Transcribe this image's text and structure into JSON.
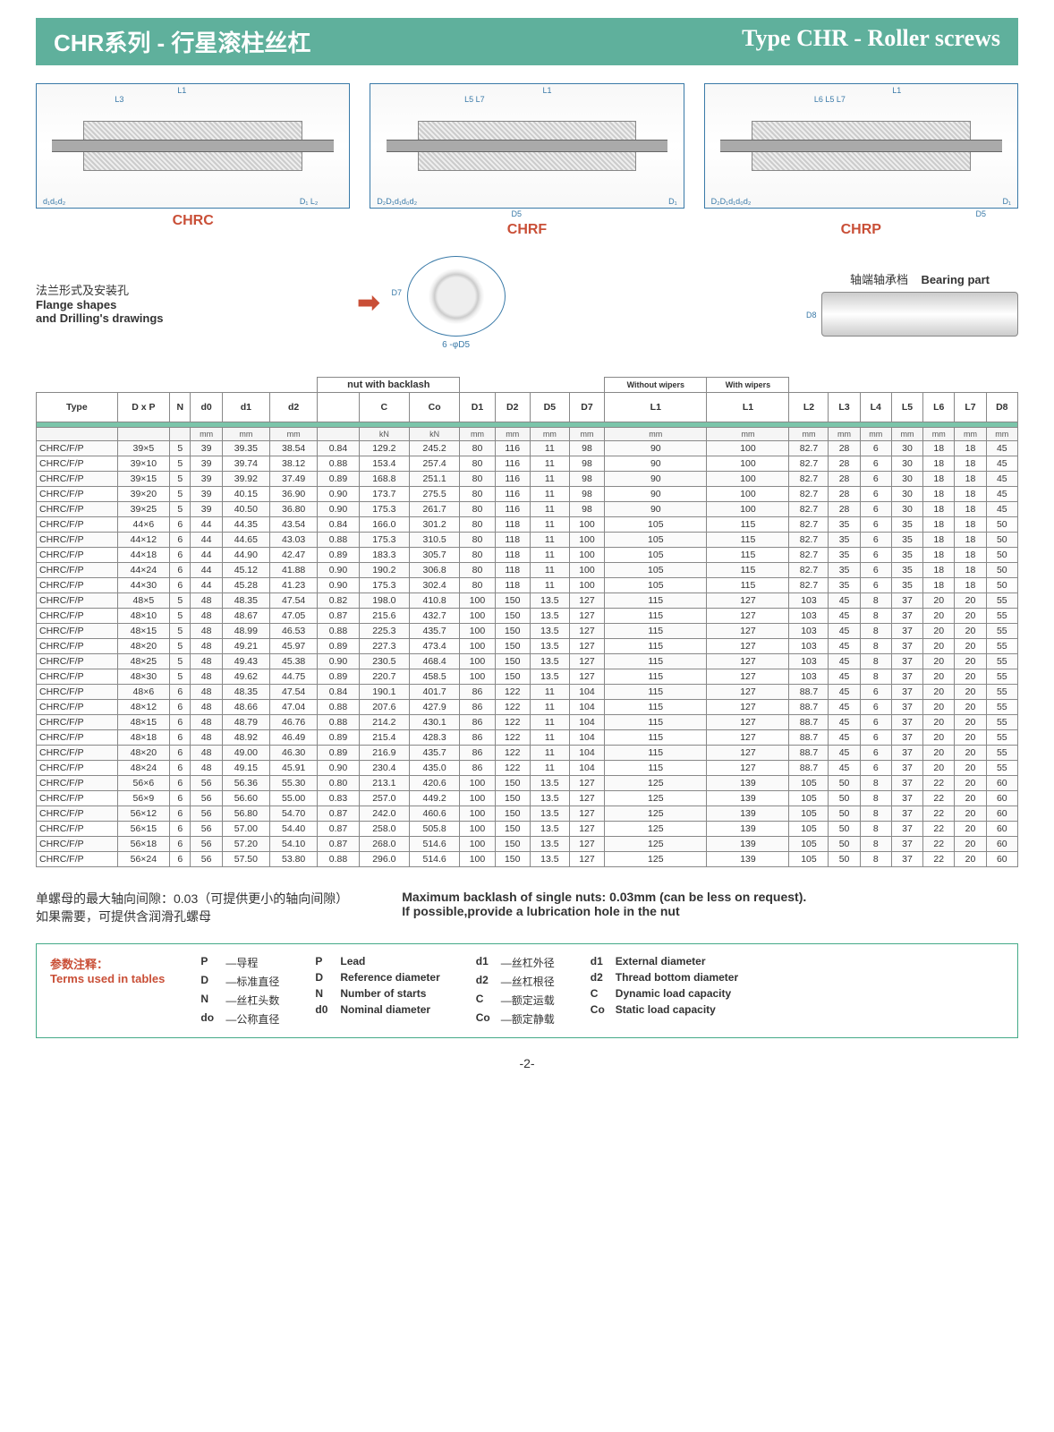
{
  "banner": {
    "cn": "CHR系列 - 行星滚柱丝杠",
    "en": "Type CHR - Roller screws"
  },
  "diagram_labels": [
    "CHRC",
    "CHRF",
    "CHRP"
  ],
  "flange": {
    "cn": "法兰形式及安装孔",
    "en1": "Flange shapes",
    "en2": "and Drilling's drawings",
    "d7": "D7",
    "caption": "6 -φD5"
  },
  "bearing": {
    "cn": "轴端轴承档",
    "en": "Bearing part",
    "d8": "D8"
  },
  "table": {
    "group_headers": {
      "backlash": "nut with backlash",
      "nowipers": "Without wipers",
      "wipers": "With wipers"
    },
    "columns": [
      "Type",
      "D x P",
      "N",
      "d0",
      "d1",
      "d2",
      "",
      "C",
      "Co",
      "D1",
      "D2",
      "D5",
      "D7",
      "L1",
      "L1",
      "L2",
      "L3",
      "L4",
      "L5",
      "L6",
      "L7",
      "D8"
    ],
    "units": [
      "",
      "",
      "",
      "mm",
      "mm",
      "mm",
      "",
      "kN",
      "kN",
      "mm",
      "mm",
      "mm",
      "mm",
      "mm",
      "mm",
      "mm",
      "mm",
      "mm",
      "mm",
      "mm",
      "mm",
      "mm"
    ],
    "rows": [
      [
        "CHRC/F/P",
        "39×5",
        "5",
        "39",
        "39.35",
        "38.54",
        "0.84",
        "129.2",
        "245.2",
        "80",
        "116",
        "11",
        "98",
        "90",
        "100",
        "82.7",
        "28",
        "6",
        "30",
        "18",
        "18",
        "45"
      ],
      [
        "CHRC/F/P",
        "39×10",
        "5",
        "39",
        "39.74",
        "38.12",
        "0.88",
        "153.4",
        "257.4",
        "80",
        "116",
        "11",
        "98",
        "90",
        "100",
        "82.7",
        "28",
        "6",
        "30",
        "18",
        "18",
        "45"
      ],
      [
        "CHRC/F/P",
        "39×15",
        "5",
        "39",
        "39.92",
        "37.49",
        "0.89",
        "168.8",
        "251.1",
        "80",
        "116",
        "11",
        "98",
        "90",
        "100",
        "82.7",
        "28",
        "6",
        "30",
        "18",
        "18",
        "45"
      ],
      [
        "CHRC/F/P",
        "39×20",
        "5",
        "39",
        "40.15",
        "36.90",
        "0.90",
        "173.7",
        "275.5",
        "80",
        "116",
        "11",
        "98",
        "90",
        "100",
        "82.7",
        "28",
        "6",
        "30",
        "18",
        "18",
        "45"
      ],
      [
        "CHRC/F/P",
        "39×25",
        "5",
        "39",
        "40.50",
        "36.80",
        "0.90",
        "175.3",
        "261.7",
        "80",
        "116",
        "11",
        "98",
        "90",
        "100",
        "82.7",
        "28",
        "6",
        "30",
        "18",
        "18",
        "45"
      ],
      [
        "CHRC/F/P",
        "44×6",
        "6",
        "44",
        "44.35",
        "43.54",
        "0.84",
        "166.0",
        "301.2",
        "80",
        "118",
        "11",
        "100",
        "105",
        "115",
        "82.7",
        "35",
        "6",
        "35",
        "18",
        "18",
        "50"
      ],
      [
        "CHRC/F/P",
        "44×12",
        "6",
        "44",
        "44.65",
        "43.03",
        "0.88",
        "175.3",
        "310.5",
        "80",
        "118",
        "11",
        "100",
        "105",
        "115",
        "82.7",
        "35",
        "6",
        "35",
        "18",
        "18",
        "50"
      ],
      [
        "CHRC/F/P",
        "44×18",
        "6",
        "44",
        "44.90",
        "42.47",
        "0.89",
        "183.3",
        "305.7",
        "80",
        "118",
        "11",
        "100",
        "105",
        "115",
        "82.7",
        "35",
        "6",
        "35",
        "18",
        "18",
        "50"
      ],
      [
        "CHRC/F/P",
        "44×24",
        "6",
        "44",
        "45.12",
        "41.88",
        "0.90",
        "190.2",
        "306.8",
        "80",
        "118",
        "11",
        "100",
        "105",
        "115",
        "82.7",
        "35",
        "6",
        "35",
        "18",
        "18",
        "50"
      ],
      [
        "CHRC/F/P",
        "44×30",
        "6",
        "44",
        "45.28",
        "41.23",
        "0.90",
        "175.3",
        "302.4",
        "80",
        "118",
        "11",
        "100",
        "105",
        "115",
        "82.7",
        "35",
        "6",
        "35",
        "18",
        "18",
        "50"
      ],
      [
        "CHRC/F/P",
        "48×5",
        "5",
        "48",
        "48.35",
        "47.54",
        "0.82",
        "198.0",
        "410.8",
        "100",
        "150",
        "13.5",
        "127",
        "115",
        "127",
        "103",
        "45",
        "8",
        "37",
        "20",
        "20",
        "55"
      ],
      [
        "CHRC/F/P",
        "48×10",
        "5",
        "48",
        "48.67",
        "47.05",
        "0.87",
        "215.6",
        "432.7",
        "100",
        "150",
        "13.5",
        "127",
        "115",
        "127",
        "103",
        "45",
        "8",
        "37",
        "20",
        "20",
        "55"
      ],
      [
        "CHRC/F/P",
        "48×15",
        "5",
        "48",
        "48.99",
        "46.53",
        "0.88",
        "225.3",
        "435.7",
        "100",
        "150",
        "13.5",
        "127",
        "115",
        "127",
        "103",
        "45",
        "8",
        "37",
        "20",
        "20",
        "55"
      ],
      [
        "CHRC/F/P",
        "48×20",
        "5",
        "48",
        "49.21",
        "45.97",
        "0.89",
        "227.3",
        "473.4",
        "100",
        "150",
        "13.5",
        "127",
        "115",
        "127",
        "103",
        "45",
        "8",
        "37",
        "20",
        "20",
        "55"
      ],
      [
        "CHRC/F/P",
        "48×25",
        "5",
        "48",
        "49.43",
        "45.38",
        "0.90",
        "230.5",
        "468.4",
        "100",
        "150",
        "13.5",
        "127",
        "115",
        "127",
        "103",
        "45",
        "8",
        "37",
        "20",
        "20",
        "55"
      ],
      [
        "CHRC/F/P",
        "48×30",
        "5",
        "48",
        "49.62",
        "44.75",
        "0.89",
        "220.7",
        "458.5",
        "100",
        "150",
        "13.5",
        "127",
        "115",
        "127",
        "103",
        "45",
        "8",
        "37",
        "20",
        "20",
        "55"
      ],
      [
        "CHRC/F/P",
        "48×6",
        "6",
        "48",
        "48.35",
        "47.54",
        "0.84",
        "190.1",
        "401.7",
        "86",
        "122",
        "11",
        "104",
        "115",
        "127",
        "88.7",
        "45",
        "6",
        "37",
        "20",
        "20",
        "55"
      ],
      [
        "CHRC/F/P",
        "48×12",
        "6",
        "48",
        "48.66",
        "47.04",
        "0.88",
        "207.6",
        "427.9",
        "86",
        "122",
        "11",
        "104",
        "115",
        "127",
        "88.7",
        "45",
        "6",
        "37",
        "20",
        "20",
        "55"
      ],
      [
        "CHRC/F/P",
        "48×15",
        "6",
        "48",
        "48.79",
        "46.76",
        "0.88",
        "214.2",
        "430.1",
        "86",
        "122",
        "11",
        "104",
        "115",
        "127",
        "88.7",
        "45",
        "6",
        "37",
        "20",
        "20",
        "55"
      ],
      [
        "CHRC/F/P",
        "48×18",
        "6",
        "48",
        "48.92",
        "46.49",
        "0.89",
        "215.4",
        "428.3",
        "86",
        "122",
        "11",
        "104",
        "115",
        "127",
        "88.7",
        "45",
        "6",
        "37",
        "20",
        "20",
        "55"
      ],
      [
        "CHRC/F/P",
        "48×20",
        "6",
        "48",
        "49.00",
        "46.30",
        "0.89",
        "216.9",
        "435.7",
        "86",
        "122",
        "11",
        "104",
        "115",
        "127",
        "88.7",
        "45",
        "6",
        "37",
        "20",
        "20",
        "55"
      ],
      [
        "CHRC/F/P",
        "48×24",
        "6",
        "48",
        "49.15",
        "45.91",
        "0.90",
        "230.4",
        "435.0",
        "86",
        "122",
        "11",
        "104",
        "115",
        "127",
        "88.7",
        "45",
        "6",
        "37",
        "20",
        "20",
        "55"
      ],
      [
        "CHRC/F/P",
        "56×6",
        "6",
        "56",
        "56.36",
        "55.30",
        "0.80",
        "213.1",
        "420.6",
        "100",
        "150",
        "13.5",
        "127",
        "125",
        "139",
        "105",
        "50",
        "8",
        "37",
        "22",
        "20",
        "60"
      ],
      [
        "CHRC/F/P",
        "56×9",
        "6",
        "56",
        "56.60",
        "55.00",
        "0.83",
        "257.0",
        "449.2",
        "100",
        "150",
        "13.5",
        "127",
        "125",
        "139",
        "105",
        "50",
        "8",
        "37",
        "22",
        "20",
        "60"
      ],
      [
        "CHRC/F/P",
        "56×12",
        "6",
        "56",
        "56.80",
        "54.70",
        "0.87",
        "242.0",
        "460.6",
        "100",
        "150",
        "13.5",
        "127",
        "125",
        "139",
        "105",
        "50",
        "8",
        "37",
        "22",
        "20",
        "60"
      ],
      [
        "CHRC/F/P",
        "56×15",
        "6",
        "56",
        "57.00",
        "54.40",
        "0.87",
        "258.0",
        "505.8",
        "100",
        "150",
        "13.5",
        "127",
        "125",
        "139",
        "105",
        "50",
        "8",
        "37",
        "22",
        "20",
        "60"
      ],
      [
        "CHRC/F/P",
        "56×18",
        "6",
        "56",
        "57.20",
        "54.10",
        "0.87",
        "268.0",
        "514.6",
        "100",
        "150",
        "13.5",
        "127",
        "125",
        "139",
        "105",
        "50",
        "8",
        "37",
        "22",
        "20",
        "60"
      ],
      [
        "CHRC/F/P",
        "56×24",
        "6",
        "56",
        "57.50",
        "53.80",
        "0.88",
        "296.0",
        "514.6",
        "100",
        "150",
        "13.5",
        "127",
        "125",
        "139",
        "105",
        "50",
        "8",
        "37",
        "22",
        "20",
        "60"
      ]
    ]
  },
  "notes": {
    "cn1": "单螺母的最大轴向间隙：0.03（可提供更小的轴向间隙）",
    "cn2": "如果需要，可提供含润滑孔螺母",
    "en1": "Maximum backlash of single nuts: 0.03mm (can be less on request).",
    "en2": "If possible,provide a lubrication hole in the nut"
  },
  "terms": {
    "title_cn": "参数注释：",
    "title_en": "Terms used in tables",
    "col1": [
      {
        "sym": "P",
        "cn": "—导程"
      },
      {
        "sym": "D",
        "cn": "—标准直径"
      },
      {
        "sym": "N",
        "cn": "—丝杠头数"
      },
      {
        "sym": "do",
        "cn": "—公称直径"
      }
    ],
    "col2": [
      {
        "sym": "P",
        "en": "Lead"
      },
      {
        "sym": "D",
        "en": "Reference diameter"
      },
      {
        "sym": "N",
        "en": "Number of starts"
      },
      {
        "sym": "d0",
        "en": "Nominal diameter"
      }
    ],
    "col3": [
      {
        "sym": "d1",
        "cn": "—丝杠外径"
      },
      {
        "sym": "d2",
        "cn": "—丝杠根径"
      },
      {
        "sym": "C",
        "cn": "—额定运载"
      },
      {
        "sym": "Co",
        "cn": "—额定静载"
      }
    ],
    "col4": [
      {
        "sym": "d1",
        "en": "External diameter"
      },
      {
        "sym": "d2",
        "en": "Thread bottom diameter"
      },
      {
        "sym": "C",
        "en": "Dynamic load capacity"
      },
      {
        "sym": "Co",
        "en": "Static load capacity"
      }
    ]
  },
  "page": "-2-"
}
